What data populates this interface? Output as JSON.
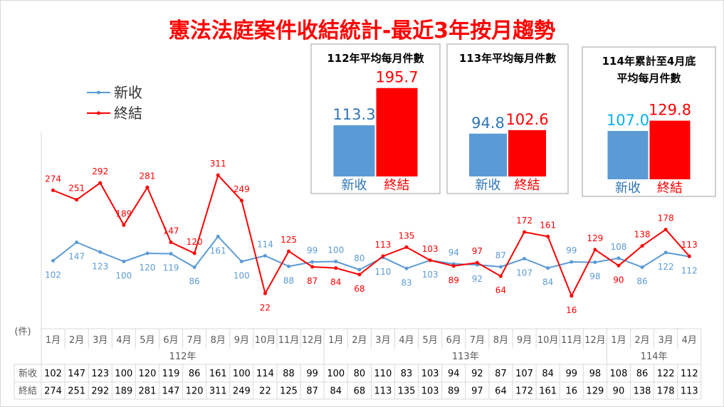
{
  "title": "憲法法庭案件收結統計-最近3年按月趨勢",
  "chart_data": [
    {
      "type": "line",
      "unit_label": "(件)",
      "categories": [
        "1月",
        "2月",
        "3月",
        "4月",
        "5月",
        "6月",
        "7月",
        "8月",
        "9月",
        "10月",
        "11月",
        "12月",
        "1月",
        "2月",
        "3月",
        "4月",
        "5月",
        "6月",
        "7月",
        "8月",
        "9月",
        "10月",
        "11月",
        "12月",
        "1月",
        "2月",
        "3月",
        "4月"
      ],
      "year_groups": [
        {
          "label": "112年",
          "count": 12
        },
        {
          "label": "113年",
          "count": 12
        },
        {
          "label": "114年",
          "count": 4
        }
      ],
      "series": [
        {
          "name": "新收",
          "color": "#5b9bd5",
          "values": [
            102,
            147,
            123,
            100,
            120,
            119,
            86,
            161,
            100,
            114,
            88,
            99,
            100,
            80,
            110,
            83,
            103,
            94,
            92,
            87,
            107,
            84,
            99,
            98,
            108,
            86,
            122,
            112
          ]
        },
        {
          "name": "終結",
          "color": "#ff0000",
          "values": [
            274,
            251,
            292,
            189,
            281,
            147,
            120,
            311,
            249,
            22,
            125,
            87,
            84,
            68,
            113,
            135,
            103,
            89,
            97,
            64,
            172,
            161,
            16,
            129,
            90,
            138,
            178,
            113
          ]
        }
      ],
      "table_row_labels": [
        "新收",
        "終結"
      ],
      "legend_position": "top-left"
    },
    {
      "type": "bar",
      "title": "112年平均每月件數",
      "categories": [
        "新收",
        "終結"
      ],
      "values": [
        113.3,
        195.7
      ],
      "colors": [
        "#5b9bd5",
        "#ff0000"
      ]
    },
    {
      "type": "bar",
      "title": "113年平均每月件數",
      "categories": [
        "新收",
        "終結"
      ],
      "values": [
        94.8,
        102.6
      ],
      "colors": [
        "#5b9bd5",
        "#ff0000"
      ]
    },
    {
      "type": "bar",
      "title": "114年累計至4月底\n平均每月件數",
      "categories": [
        "新收",
        "終結"
      ],
      "values": [
        107.0,
        129.8
      ],
      "colors": [
        "#5b9bd5",
        "#ff0000"
      ]
    }
  ]
}
